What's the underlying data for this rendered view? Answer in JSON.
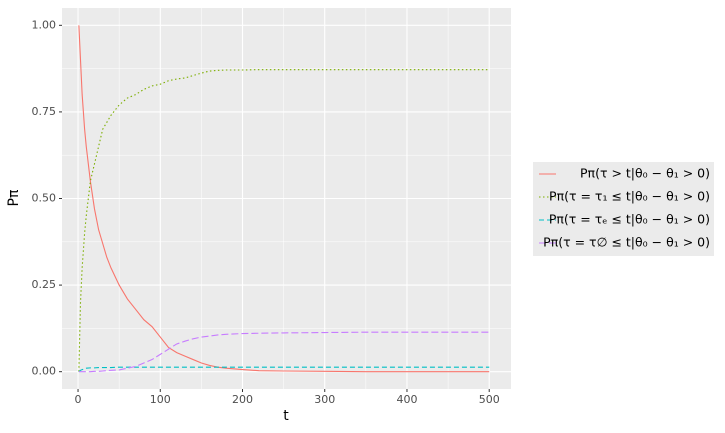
{
  "chart_data": {
    "type": "line",
    "xlabel": "t",
    "ylabel": "Pπ",
    "x": [
      1,
      3,
      5,
      8,
      10,
      15,
      20,
      25,
      30,
      35,
      40,
      50,
      60,
      70,
      80,
      90,
      100,
      110,
      120,
      130,
      140,
      150,
      160,
      170,
      180,
      200,
      220,
      250,
      300,
      350,
      400,
      450,
      500
    ],
    "series": [
      {
        "name": "Pπ(τ > t|θ₀ − θ₁ > 0)",
        "color": "#F8766D",
        "dash": "solid",
        "values": [
          1.0,
          0.9,
          0.8,
          0.7,
          0.65,
          0.55,
          0.47,
          0.41,
          0.37,
          0.33,
          0.3,
          0.25,
          0.21,
          0.18,
          0.15,
          0.13,
          0.1,
          0.07,
          0.055,
          0.045,
          0.035,
          0.025,
          0.018,
          0.013,
          0.01,
          0.006,
          0.003,
          0.002,
          0.001,
          0,
          0,
          0,
          0
        ]
      },
      {
        "name": "Pπ(τ = τ₁ ≤ t|θ₀ − θ₁ > 0)",
        "color": "#7CAE00",
        "dash": "dotted",
        "values": [
          0,
          0.2,
          0.3,
          0.4,
          0.45,
          0.55,
          0.6,
          0.65,
          0.7,
          0.72,
          0.74,
          0.77,
          0.79,
          0.8,
          0.815,
          0.825,
          0.83,
          0.84,
          0.845,
          0.848,
          0.855,
          0.862,
          0.868,
          0.87,
          0.871,
          0.871,
          0.872,
          0.872,
          0.872,
          0.872,
          0.872,
          0.872,
          0.872
        ]
      },
      {
        "name": "Pπ(τ = τₑ ≤ t|θ₀ − θ₁ > 0)",
        "color": "#00BFC4",
        "dash": "dashed",
        "values": [
          0,
          0.004,
          0.006,
          0.008,
          0.01,
          0.011,
          0.011,
          0.012,
          0.012,
          0.012,
          0.012,
          0.013,
          0.013,
          0.013,
          0.013,
          0.013,
          0.013,
          0.013,
          0.013,
          0.013,
          0.013,
          0.013,
          0.013,
          0.013,
          0.013,
          0.013,
          0.013,
          0.013,
          0.013,
          0.013,
          0.013,
          0.013,
          0.013
        ]
      },
      {
        "name": "Pπ(τ = τ∅ ≤ t|θ₀ − θ₁ > 0)",
        "color": "#C77CFF",
        "dash": "longdash",
        "values": [
          0,
          0,
          0,
          0,
          0,
          0,
          0.001,
          0.001,
          0.002,
          0.003,
          0.004,
          0.005,
          0.01,
          0.015,
          0.025,
          0.035,
          0.05,
          0.065,
          0.08,
          0.088,
          0.095,
          0.1,
          0.103,
          0.106,
          0.108,
          0.11,
          0.111,
          0.112,
          0.113,
          0.114,
          0.114,
          0.114,
          0.114
        ]
      }
    ],
    "xlim": [
      -19.5,
      526.5
    ],
    "xticks": [
      0,
      100,
      200,
      300,
      400,
      500
    ],
    "ylim": [
      -0.05,
      1.05
    ],
    "yticks": [
      {
        "value": 0,
        "label": "0.00"
      },
      {
        "value": 0.25,
        "label": "0.25"
      },
      {
        "value": 0.5,
        "label": "0.50"
      },
      {
        "value": 0.75,
        "label": "0.75"
      },
      {
        "value": 1,
        "label": "1.00"
      }
    ],
    "grid": true,
    "legend": "right"
  }
}
